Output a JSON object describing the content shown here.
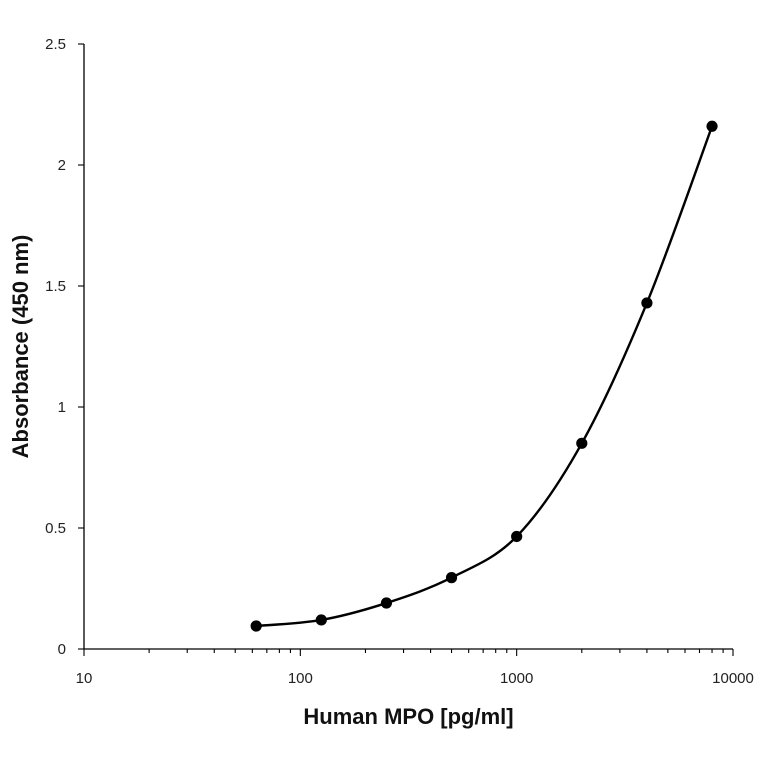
{
  "chart_data": {
    "type": "scatter",
    "xscale": "log",
    "xlabel": "Human MPO [pg/ml]",
    "ylabel": "Absorbance (450 nm)",
    "xlim": [
      10,
      10000
    ],
    "ylim": [
      0,
      2.5
    ],
    "xticks": [
      "10",
      "100",
      "1000",
      "10000"
    ],
    "yticks": [
      "0",
      "0.5",
      "1",
      "1.5",
      "2",
      "2.5"
    ],
    "grid": false,
    "smoothed_line": true,
    "color": "#000000",
    "series": [
      {
        "x": [
          62.5,
          125,
          250,
          500,
          1000,
          2000,
          4000,
          8000
        ],
        "y": [
          0.095,
          0.12,
          0.19,
          0.295,
          0.465,
          0.85,
          1.43,
          2.16
        ]
      }
    ]
  }
}
